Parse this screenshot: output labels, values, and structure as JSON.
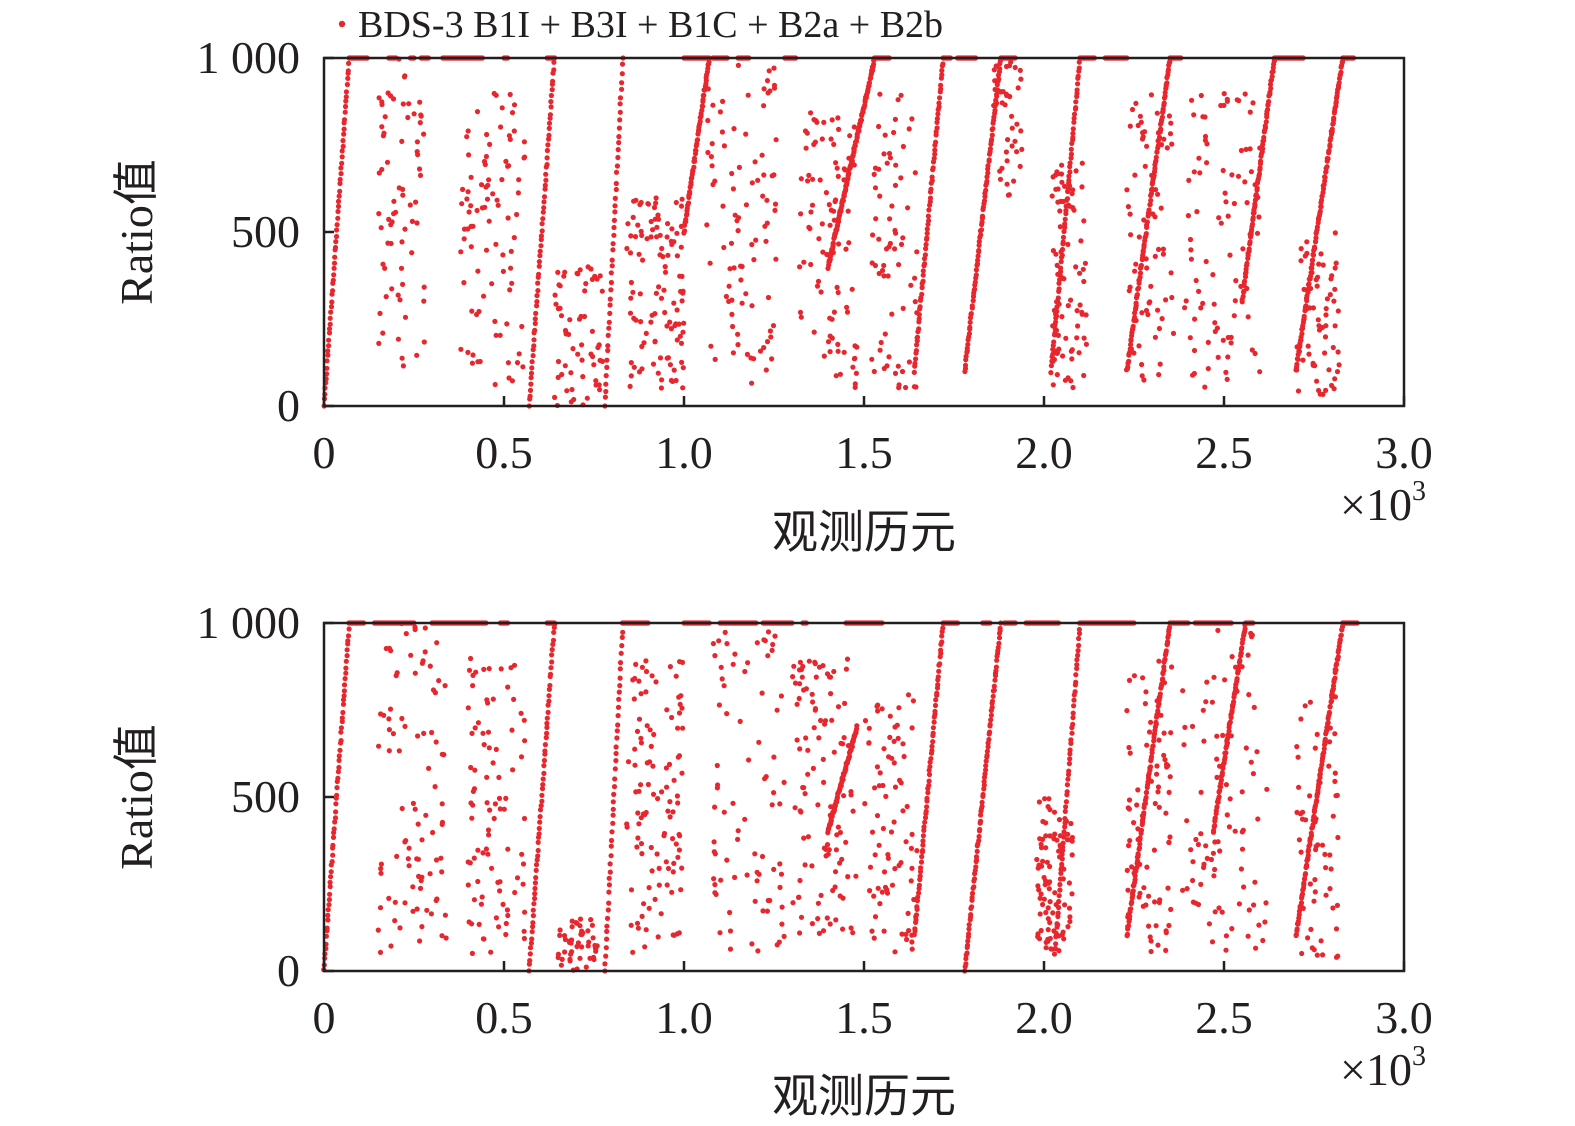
{
  "legend": {
    "label": "BDS-3 B1I + B3I + B1C + B2a + B2b"
  },
  "axis_text": {
    "ylabel": "Ratio值",
    "xlabel": "观测历元",
    "x_multiplier": "×10",
    "x_multiplier_exp": "3",
    "x_ticks": [
      "0",
      "0.5",
      "1.0",
      "1.5",
      "2.0",
      "2.5",
      "3.0"
    ],
    "y_ticks": [
      "0",
      "500",
      "1 000"
    ]
  },
  "colors": {
    "series": "#e8262d",
    "axis": "#231f20"
  },
  "chart_data": [
    {
      "type": "scatter",
      "series": [
        {
          "name": "BDS-3 B1I + B3I + B1C + B2a + B2b"
        }
      ],
      "xlabel": "观测历元",
      "ylabel": "Ratio值",
      "xlim": [
        0,
        3000
      ],
      "ylim": [
        0,
        1000
      ],
      "x_tick_values": [
        0,
        500,
        1000,
        1500,
        2000,
        2500,
        3000
      ],
      "y_tick_values": [
        0,
        500,
        1000
      ],
      "ceiling_segments": [
        [
          70,
          120
        ],
        [
          180,
          200
        ],
        [
          240,
          250
        ],
        [
          270,
          290
        ],
        [
          330,
          440
        ],
        [
          500,
          510
        ],
        [
          620,
          640
        ],
        [
          1000,
          1070
        ],
        [
          1080,
          1120
        ],
        [
          1150,
          1180
        ],
        [
          1280,
          1310
        ],
        [
          1530,
          1570
        ],
        [
          1720,
          1740
        ],
        [
          1760,
          1810
        ],
        [
          1880,
          1920
        ],
        [
          2100,
          2140
        ],
        [
          2170,
          2230
        ],
        [
          2350,
          2380
        ],
        [
          2640,
          2720
        ],
        [
          2830,
          2860
        ]
      ],
      "ramps": [
        [
          0,
          0,
          70,
          1000
        ],
        [
          570,
          0,
          640,
          1000
        ],
        [
          780,
          0,
          830,
          1000
        ],
        [
          1000,
          500,
          1070,
          1000
        ],
        [
          1400,
          400,
          1530,
          1000
        ],
        [
          1640,
          100,
          1720,
          1000
        ],
        [
          1780,
          100,
          1880,
          1000
        ],
        [
          2020,
          100,
          2100,
          1000
        ],
        [
          2230,
          100,
          2350,
          1000
        ],
        [
          2550,
          300,
          2640,
          1000
        ],
        [
          2700,
          100,
          2830,
          1000
        ]
      ],
      "clusters": [
        [
          150,
          280,
          100,
          1000,
          70
        ],
        [
          380,
          560,
          50,
          900,
          90
        ],
        [
          640,
          780,
          0,
          400,
          60
        ],
        [
          840,
          1000,
          50,
          600,
          110
        ],
        [
          1060,
          1260,
          50,
          1000,
          90
        ],
        [
          1320,
          1480,
          50,
          850,
          90
        ],
        [
          1520,
          1650,
          50,
          900,
          70
        ],
        [
          1860,
          1940,
          600,
          1000,
          40
        ],
        [
          2020,
          2120,
          50,
          700,
          80
        ],
        [
          2230,
          2360,
          50,
          900,
          70
        ],
        [
          2390,
          2600,
          50,
          900,
          90
        ],
        [
          2700,
          2820,
          20,
          500,
          60
        ]
      ]
    },
    {
      "type": "scatter",
      "series": [
        {
          "name": "BDS-3 B1I + B3I + B1C + B2a + B2b"
        }
      ],
      "xlabel": "观测历元",
      "ylabel": "Ratio值",
      "xlim": [
        0,
        3000
      ],
      "ylim": [
        0,
        1000
      ],
      "x_tick_values": [
        0,
        500,
        1000,
        1500,
        2000,
        2500,
        3000
      ],
      "y_tick_values": [
        0,
        500,
        1000
      ],
      "ceiling_segments": [
        [
          70,
          110
        ],
        [
          140,
          250
        ],
        [
          300,
          450
        ],
        [
          490,
          510
        ],
        [
          620,
          640
        ],
        [
          830,
          900
        ],
        [
          1000,
          1070
        ],
        [
          1100,
          1200
        ],
        [
          1220,
          1300
        ],
        [
          1330,
          1340
        ],
        [
          1450,
          1550
        ],
        [
          1720,
          1760
        ],
        [
          1830,
          1850
        ],
        [
          1890,
          1920
        ],
        [
          1950,
          2040
        ],
        [
          2100,
          2250
        ],
        [
          2350,
          2400
        ],
        [
          2420,
          2520
        ],
        [
          2560,
          2580
        ],
        [
          2830,
          2870
        ]
      ],
      "ramps": [
        [
          0,
          0,
          70,
          1000
        ],
        [
          570,
          0,
          640,
          1000
        ],
        [
          780,
          0,
          830,
          1000
        ],
        [
          1400,
          400,
          1480,
          700
        ],
        [
          1640,
          100,
          1720,
          1000
        ],
        [
          1780,
          0,
          1880,
          1000
        ],
        [
          2030,
          50,
          2100,
          1000
        ],
        [
          2230,
          100,
          2350,
          1000
        ],
        [
          2470,
          400,
          2560,
          1000
        ],
        [
          2700,
          100,
          2830,
          1000
        ]
      ],
      "clusters": [
        [
          150,
          340,
          50,
          1000,
          90
        ],
        [
          400,
          560,
          50,
          900,
          90
        ],
        [
          650,
          760,
          0,
          150,
          50
        ],
        [
          840,
          1000,
          50,
          900,
          110
        ],
        [
          1080,
          1280,
          50,
          1000,
          80
        ],
        [
          1300,
          1480,
          100,
          900,
          110
        ],
        [
          1500,
          1650,
          50,
          800,
          80
        ],
        [
          1980,
          2080,
          50,
          500,
          90
        ],
        [
          2230,
          2360,
          50,
          900,
          80
        ],
        [
          2380,
          2620,
          50,
          1000,
          90
        ],
        [
          2700,
          2820,
          20,
          800,
          60
        ]
      ]
    }
  ]
}
